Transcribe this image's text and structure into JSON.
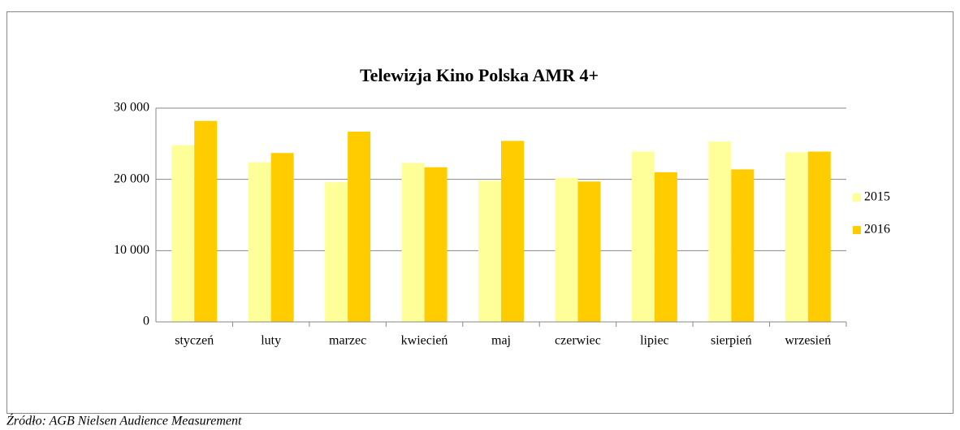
{
  "chart_data": {
    "type": "bar",
    "title": "Telewizja Kino Polska AMR 4+",
    "categories": [
      "styczeń",
      "luty",
      "marzec",
      "kwiecień",
      "maj",
      "czerwiec",
      "lipiec",
      "sierpień",
      "wrzesień"
    ],
    "series": [
      {
        "name": "2015",
        "color": "#ffff99",
        "values": [
          24800,
          22400,
          19600,
          22300,
          19800,
          20200,
          23900,
          25300,
          23800
        ]
      },
      {
        "name": "2016",
        "color": "#ffcc00",
        "values": [
          28200,
          23700,
          26700,
          21700,
          25400,
          19700,
          21000,
          21400,
          23900
        ]
      }
    ],
    "ylim": [
      0,
      30000
    ],
    "yticks": [
      0,
      {
        "value": 10000,
        "label": "10 000"
      },
      {
        "value": 20000,
        "label": "20 000"
      },
      {
        "value": 30000,
        "label": "30 000"
      }
    ],
    "grid": true,
    "legend": "right",
    "source": "Źródło: AGB Nielsen Audience Measurement"
  }
}
